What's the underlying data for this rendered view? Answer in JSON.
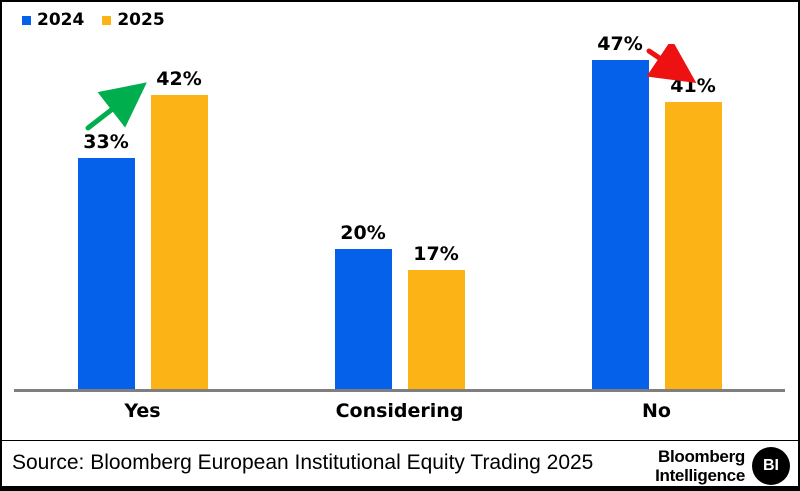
{
  "chart_data": {
    "type": "bar",
    "categories": [
      "Yes",
      "Considering",
      "No"
    ],
    "series": [
      {
        "name": "2024",
        "color": "#0661EA",
        "values": [
          33,
          20,
          47
        ]
      },
      {
        "name": "2025",
        "color": "#FCB316",
        "values": [
          42,
          17,
          41
        ]
      }
    ],
    "value_suffix": "%",
    "ylim": [
      0,
      50
    ],
    "grid": false,
    "legend_position": "top-left",
    "axis_line_color": "#7f7f7f",
    "annotations": [
      {
        "id": "yes-trend-arrow",
        "trend": "up",
        "color": "#00AE4D",
        "from": "Yes 2024 (33%)",
        "to": "Yes 2025 (42%)"
      },
      {
        "id": "no-trend-arrow",
        "trend": "down",
        "color": "#EE1111",
        "from": "No 2024 (47%)",
        "to": "No 2025 (41%)"
      }
    ]
  },
  "footer": {
    "source_text": "Source: Bloomberg European Institutional Equity Trading 2025",
    "logo": {
      "name": "Bloomberg Intelligence",
      "line1": "Bloomberg",
      "line2": "Intelligence",
      "badge": "BI"
    }
  }
}
